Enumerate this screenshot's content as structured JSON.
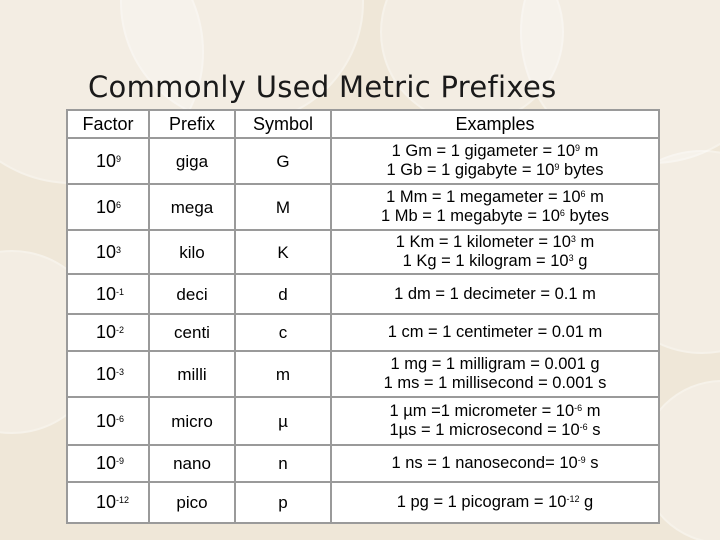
{
  "title": "Commonly Used Metric Prefixes",
  "headers": [
    "Factor",
    "Prefix",
    "Symbol",
    "Examples"
  ],
  "rows": [
    {
      "factor_base": "10",
      "factor_exp": "9",
      "prefix": "giga",
      "symbol": "G",
      "examples": [
        {
          "pre": "1 Gm = 1 gigameter = 10",
          "sup": "9",
          "post": " m"
        },
        {
          "pre": "1 Gb = 1 gigabyte = 10",
          "sup": "9",
          "post": " bytes"
        }
      ]
    },
    {
      "factor_base": "10",
      "factor_exp": "6",
      "prefix": "mega",
      "symbol": "M",
      "examples": [
        {
          "pre": "1 Mm = 1 megameter = 10",
          "sup": "6",
          "post": " m"
        },
        {
          "pre": "1 Mb = 1 megabyte = 10",
          "sup": "6",
          "post": " bytes"
        }
      ]
    },
    {
      "factor_base": "10",
      "factor_exp": "3",
      "prefix": "kilo",
      "symbol": "K",
      "examples": [
        {
          "pre": "1 Km = 1 kilometer = 10",
          "sup": "3",
          "post": " m"
        },
        {
          "pre": "1 Kg = 1 kilogram =  10",
          "sup": "3",
          "post": " g"
        }
      ]
    },
    {
      "factor_base": "10",
      "factor_exp": "-1",
      "prefix": "deci",
      "symbol": "d",
      "examples": [
        {
          "pre": "1 dm = 1 decimeter = 0.1 m",
          "sup": "",
          "post": ""
        }
      ]
    },
    {
      "factor_base": "10",
      "factor_exp": "-2",
      "prefix": "centi",
      "symbol": "c",
      "examples": [
        {
          "pre": "1 cm = 1 centimeter = 0.01 m",
          "sup": "",
          "post": ""
        }
      ]
    },
    {
      "factor_base": "10",
      "factor_exp": "-3",
      "prefix": "milli",
      "symbol": "m",
      "examples": [
        {
          "pre": "1 mg = 1 milligram =  0.001 g",
          "sup": "",
          "post": ""
        },
        {
          "pre": "1 ms = 1 millisecond = 0.001 s",
          "sup": "",
          "post": ""
        }
      ]
    },
    {
      "factor_base": "10",
      "factor_exp": "-6",
      "prefix": "micro",
      "symbol": "µ",
      "examples": [
        {
          "pre": "1 µm =1 micrometer = 10",
          "sup": "-6",
          "post": " m"
        },
        {
          "pre": "1µs = 1 microsecond = 10",
          "sup": "-6",
          "post": " s"
        }
      ]
    },
    {
      "factor_base": "10",
      "factor_exp": "-9",
      "prefix": "nano",
      "symbol": "n",
      "examples": [
        {
          "pre": "1 ns = 1 nanosecond= 10",
          "sup": "-9",
          "post": " s"
        }
      ]
    },
    {
      "factor_base": "10",
      "factor_exp": "-12",
      "prefix": "pico",
      "symbol": "p",
      "examples": [
        {
          "pre": "1 pg = 1 picogram = 10",
          "sup": "-12",
          "post": " g"
        }
      ]
    }
  ]
}
